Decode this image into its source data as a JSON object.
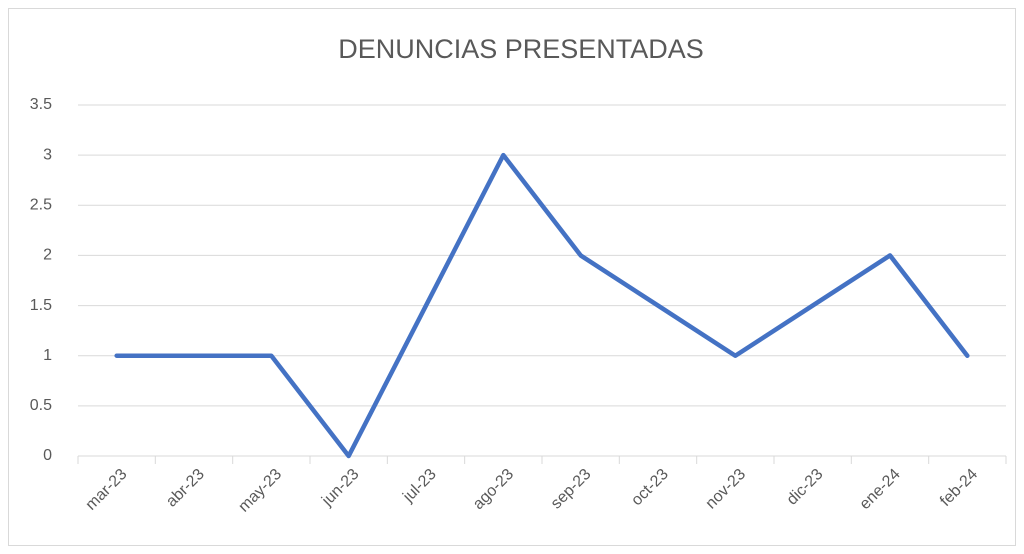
{
  "chart_data": {
    "type": "line",
    "title": "DENUNCIAS PRESENTADAS",
    "categories": [
      "mar-23",
      "abr-23",
      "may-23",
      "jun-23",
      "jul-23",
      "ago-23",
      "sep-23",
      "oct-23",
      "nov-23",
      "dic-23",
      "ene-24",
      "feb-24"
    ],
    "values": [
      1,
      1,
      1,
      0,
      1.5,
      3,
      2,
      1.5,
      1,
      1.5,
      2,
      1
    ],
    "color": "#4472c4",
    "ylim": [
      0,
      3.5
    ],
    "yticks": [
      0,
      0.5,
      1,
      1.5,
      2,
      2.5,
      3,
      3.5
    ],
    "grid": true
  }
}
